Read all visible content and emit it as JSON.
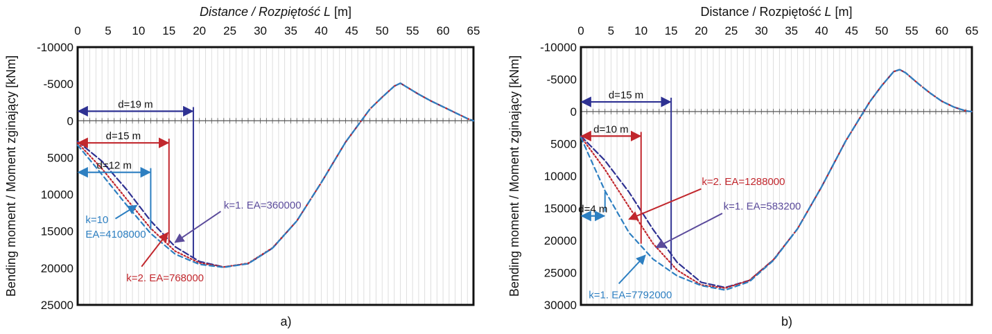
{
  "colors": {
    "navy": "#2e3192",
    "purple": "#5b4b9b",
    "red": "#c1272d",
    "blue": "#2d7fc1",
    "axis": "#222222",
    "grid": "#d6d6d6"
  },
  "chart_data": [
    {
      "type": "line",
      "panel": "a)",
      "xlabel_prefix": "Distance / Rozpiętość ",
      "xlabel_var": "L",
      "xlabel_unit": " [m]",
      "ylabel": "Bending moment / Moment zginający  [kNm]",
      "xlim": [
        0,
        65
      ],
      "ylim": [
        -10000,
        25000
      ],
      "y_reversed": true,
      "x_ticks": [
        0,
        5,
        10,
        15,
        20,
        25,
        30,
        35,
        40,
        45,
        50,
        55,
        60,
        65
      ],
      "y_ticks": [
        -10000,
        -5000,
        0,
        5000,
        10000,
        15000,
        20000,
        25000
      ],
      "grid": true,
      "series": [
        {
          "style": "navy-dash",
          "color": "navy",
          "dash": "9,4",
          "x": [
            0,
            4,
            8,
            12,
            16,
            20,
            24,
            28,
            32,
            36,
            40,
            44,
            48,
            50,
            52,
            53,
            54,
            56,
            58,
            60,
            62,
            64,
            65
          ],
          "y": [
            2800,
            5500,
            9300,
            13600,
            17100,
            19100,
            19850,
            19400,
            17300,
            13600,
            8400,
            2900,
            -1600,
            -3200,
            -4700,
            -5100,
            -4600,
            -3600,
            -2700,
            -1900,
            -1100,
            -300,
            0
          ]
        },
        {
          "style": "red-dot",
          "color": "red",
          "dash": "2,3",
          "x": [
            0,
            4,
            8,
            12,
            16,
            20,
            24,
            28,
            32,
            36,
            40,
            44,
            48,
            50,
            52,
            53,
            54,
            56,
            58,
            60,
            62,
            64,
            65
          ],
          "y": [
            3000,
            6500,
            10600,
            14600,
            17700,
            19300,
            19850,
            19350,
            17250,
            13600,
            8400,
            2900,
            -1600,
            -3200,
            -4700,
            -5100,
            -4600,
            -3600,
            -2700,
            -1900,
            -1100,
            -300,
            0
          ]
        },
        {
          "style": "blue-dash",
          "color": "blue",
          "dash": "7,5",
          "x": [
            0,
            4,
            8,
            12,
            16,
            20,
            24,
            28,
            32,
            36,
            40,
            44,
            48,
            50,
            52,
            53,
            54,
            56,
            58,
            60,
            62,
            64,
            65
          ],
          "y": [
            3300,
            7300,
            11400,
            15300,
            18100,
            19500,
            19900,
            19400,
            17300,
            13600,
            8400,
            2900,
            -1600,
            -3200,
            -4700,
            -5100,
            -4600,
            -3600,
            -2700,
            -1900,
            -1100,
            -300,
            0
          ]
        }
      ],
      "dimension_lines": [
        {
          "text": "d=19 m",
          "color": "navy",
          "x0": 0,
          "x1": 19,
          "y": -1300,
          "drop_to": 18700
        },
        {
          "text": "d=15 m",
          "color": "red",
          "x0": 0,
          "x1": 15,
          "y": 3000,
          "drop_to": 16700
        },
        {
          "text": "d=12 m",
          "color": "blue",
          "x0": 0,
          "x1": 12,
          "y": 7000,
          "drop_to": 14800
        }
      ],
      "callouts": [
        {
          "lines": [
            "k=1. EA=360000"
          ],
          "color": "purple",
          "text_x": 24,
          "text_y": 11900,
          "arrow_from": [
            23.5,
            12300
          ],
          "arrow_to": [
            16,
            16500
          ]
        },
        {
          "lines": [
            "k=10",
            "EA=4108000"
          ],
          "color": "blue",
          "text_x": 1.3,
          "text_y": 13900,
          "arrow_from": [
            6.2,
            13300
          ],
          "arrow_to": [
            9.7,
            11500
          ]
        },
        {
          "lines": [
            "k=2. EA=768000"
          ],
          "color": "red",
          "text_x": 8,
          "text_y": 21800,
          "arrow_from": [
            10.5,
            19800
          ],
          "arrow_to": [
            14.8,
            15200
          ]
        }
      ]
    },
    {
      "type": "line",
      "panel": "b)",
      "xlabel_prefix": "Distance / Rozpiętość  ",
      "xlabel_var": "L",
      "xlabel_unit": " [m]",
      "ylabel": "Bending moment / Moment zginający  [kNm]",
      "xlim": [
        0,
        65
      ],
      "ylim": [
        -10000,
        30000
      ],
      "y_reversed": true,
      "x_ticks": [
        0,
        5,
        10,
        15,
        20,
        25,
        30,
        35,
        40,
        45,
        50,
        55,
        60,
        65
      ],
      "y_ticks": [
        -10000,
        -5000,
        0,
        5000,
        10000,
        15000,
        20000,
        25000,
        30000
      ],
      "grid": true,
      "series": [
        {
          "style": "navy-dash",
          "color": "navy",
          "dash": "9,4",
          "x": [
            0,
            4,
            8,
            12,
            16,
            20,
            24,
            28,
            32,
            36,
            40,
            44,
            48,
            50,
            52,
            53,
            54,
            56,
            58,
            60,
            62,
            64,
            65
          ],
          "y": [
            3800,
            7600,
            12500,
            18300,
            23400,
            26500,
            27300,
            26200,
            23000,
            18200,
            11700,
            4600,
            -1500,
            -4000,
            -6200,
            -6500,
            -6000,
            -4400,
            -2900,
            -1600,
            -700,
            -100,
            0
          ]
        },
        {
          "style": "red-dot",
          "color": "red",
          "dash": "2,3",
          "x": [
            0,
            4,
            8,
            12,
            16,
            20,
            24,
            28,
            32,
            36,
            40,
            44,
            48,
            50,
            52,
            53,
            54,
            56,
            58,
            60,
            62,
            64,
            65
          ],
          "y": [
            3900,
            9000,
            14800,
            20500,
            24600,
            26900,
            27400,
            26200,
            23000,
            18200,
            11700,
            4600,
            -1500,
            -4000,
            -6200,
            -6500,
            -6000,
            -4400,
            -2900,
            -1600,
            -700,
            -100,
            0
          ]
        },
        {
          "style": "blue-dash",
          "color": "blue",
          "dash": "7,5",
          "x": [
            0,
            2,
            4,
            8,
            12,
            16,
            20,
            24,
            28,
            32,
            36,
            40,
            44,
            48,
            50,
            52,
            53,
            54,
            56,
            58,
            60,
            62,
            64,
            65
          ],
          "y": [
            4000,
            8200,
            12300,
            18800,
            22900,
            25500,
            27000,
            27700,
            26400,
            23100,
            18200,
            11700,
            4600,
            -1500,
            -4000,
            -6200,
            -6500,
            -6000,
            -4400,
            -2900,
            -1600,
            -700,
            -100,
            0
          ]
        }
      ],
      "dimension_lines": [
        {
          "text": "d=15 m",
          "color": "navy",
          "x0": 0,
          "x1": 15,
          "y": -1500,
          "drop_to": 24500
        },
        {
          "text": "d=10 m",
          "color": "red",
          "x0": 0,
          "x1": 10,
          "y": 3800,
          "drop_to": 20500
        },
        {
          "text": "d=4 m",
          "color": "blue",
          "x0": 0,
          "x1": 4,
          "y": 16200,
          "drop_to": 12500
        }
      ],
      "callouts": [
        {
          "lines": [
            "k=2. EA=1288000"
          ],
          "color": "red",
          "text_x": 20.1,
          "text_y": 11400,
          "arrow_from": [
            20,
            12000
          ],
          "arrow_to": [
            8,
            16700
          ]
        },
        {
          "lines": [
            "k=1. EA=583200"
          ],
          "color": "purple",
          "text_x": 23.7,
          "text_y": 15200,
          "arrow_from": [
            23.5,
            15800
          ],
          "arrow_to": [
            12.5,
            21100
          ]
        },
        {
          "lines": [
            "k=1. EA=7792000"
          ],
          "color": "blue",
          "text_x": 1.3,
          "text_y": 29000,
          "arrow_from": [
            6.3,
            26700
          ],
          "arrow_to": [
            10.7,
            22300
          ]
        }
      ]
    }
  ]
}
